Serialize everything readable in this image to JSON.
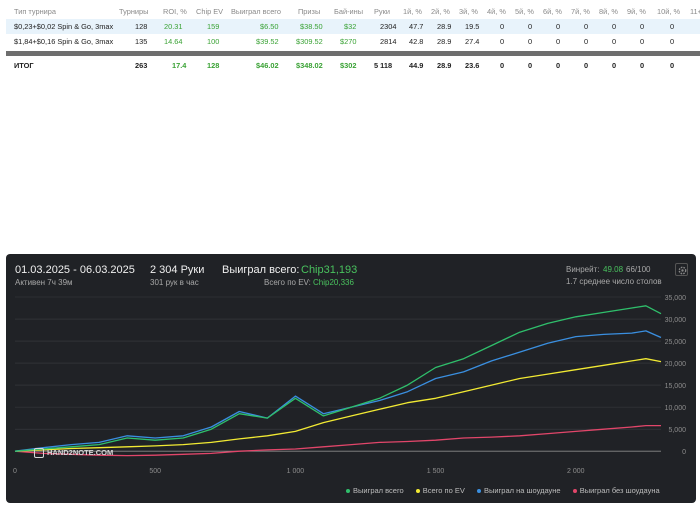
{
  "table": {
    "headers": [
      "Тип турнира",
      "Турниры",
      "ROI, %",
      "Chip EV",
      "Выиграл всего",
      "Призы",
      "Бай-ины",
      "Руки",
      "1й, %",
      "2й, %",
      "3й, %",
      "4й, %",
      "5й, %",
      "6й, %",
      "7й, %",
      "8й, %",
      "9й, %",
      "10й, %",
      "11+"
    ],
    "rows": [
      [
        "$0,23+$0,02 Spin & Go, 3max",
        "128",
        "20.31",
        "159",
        "$6.50",
        "$38.50",
        "$32",
        "2304",
        "47.7",
        "28.9",
        "19.5",
        "0",
        "0",
        "0",
        "0",
        "0",
        "0",
        "0",
        ""
      ],
      [
        "$1,84+$0,16 Spin & Go, 3max",
        "135",
        "14.64",
        "100",
        "$39.52",
        "$309.52",
        "$270",
        "2814",
        "42.8",
        "28.9",
        "27.4",
        "0",
        "0",
        "0",
        "0",
        "0",
        "0",
        "0",
        ""
      ]
    ],
    "total": [
      "ИТОГ",
      "263",
      "17.4",
      "128",
      "$46.02",
      "$348.02",
      "$302",
      "5 118",
      "44.9",
      "28.9",
      "23.6",
      "0",
      "0",
      "0",
      "0",
      "0",
      "0",
      "0",
      ""
    ]
  },
  "panel": {
    "date_range": "01.03.2025 - 06.03.2025",
    "active": "Активен 7ч 39м",
    "hands": "2 304 Руки",
    "hands_per_hour": "301 рук в час",
    "won_label": "Выиграл всего:",
    "won_value": "Chip31,193",
    "ev_label": "Всего по EV:",
    "ev_value": "Chip20,336",
    "winrate_label": "Винрейт:",
    "winrate_value": "49.08",
    "winrate_rest": "66/100",
    "avg_tables": "1.7 среднее число столов",
    "logo": "HAND2NOTE.COM",
    "colors": {
      "panel_bg": "#202226",
      "accent": "#49c25e",
      "total": "#2fbf6b",
      "ev": "#f2ea33",
      "showdown": "#3a8fe0",
      "no_showdown": "#e2466a"
    }
  },
  "chart_data": {
    "type": "line",
    "title": "",
    "xlabel": "",
    "ylabel": "",
    "xlim": [
      0,
      2304
    ],
    "ylim": [
      -2000,
      35000
    ],
    "x_ticks": [
      0,
      500,
      1000,
      1500,
      2000
    ],
    "x_tick_labels": [
      "0",
      "500",
      "1 000",
      "1 500",
      "2 000"
    ],
    "y_ticks": [
      0,
      5000,
      10000,
      15000,
      20000,
      25000,
      30000,
      35000
    ],
    "y_tick_labels": [
      "0",
      "5,000",
      "10,000",
      "15,000",
      "20,000",
      "25,000",
      "30,000",
      "35,000"
    ],
    "legend_position": "bottom-right",
    "grid": true,
    "x": [
      0,
      100,
      200,
      300,
      400,
      500,
      600,
      700,
      800,
      900,
      1000,
      1100,
      1200,
      1300,
      1400,
      1500,
      1600,
      1700,
      1800,
      1900,
      2000,
      2100,
      2200,
      2250,
      2304
    ],
    "series": [
      {
        "name": "Выиграл всего",
        "color": "#2fbf6b",
        "values": [
          0,
          500,
          1000,
          1500,
          3000,
          2500,
          3000,
          5000,
          8500,
          7500,
          12000,
          8000,
          10000,
          12000,
          15000,
          19000,
          21000,
          24000,
          27000,
          29000,
          30500,
          31500,
          32500,
          33000,
          31200
        ]
      },
      {
        "name": "Всего по EV",
        "color": "#f2ea33",
        "values": [
          0,
          300,
          600,
          800,
          1000,
          1200,
          1500,
          2000,
          2800,
          3500,
          4500,
          6500,
          8000,
          9500,
          11000,
          12000,
          13500,
          15000,
          16500,
          17500,
          18500,
          19500,
          20500,
          21000,
          20336
        ]
      },
      {
        "name": "Выиграл на шоудауне",
        "color": "#3a8fe0",
        "values": [
          0,
          800,
          1500,
          2000,
          3500,
          3000,
          3500,
          5500,
          9000,
          7500,
          12500,
          8500,
          10000,
          11500,
          13500,
          16500,
          18000,
          20500,
          22500,
          24500,
          26000,
          26500,
          26800,
          27300,
          25800
        ]
      },
      {
        "name": "Выиграл без шоудауна",
        "color": "#e2466a",
        "values": [
          0,
          -500,
          -700,
          -900,
          -1000,
          -900,
          -700,
          -500,
          0,
          300,
          500,
          1000,
          1500,
          2000,
          2200,
          2500,
          3000,
          3200,
          3500,
          4000,
          4500,
          5000,
          5500,
          5800,
          5800
        ]
      }
    ]
  }
}
